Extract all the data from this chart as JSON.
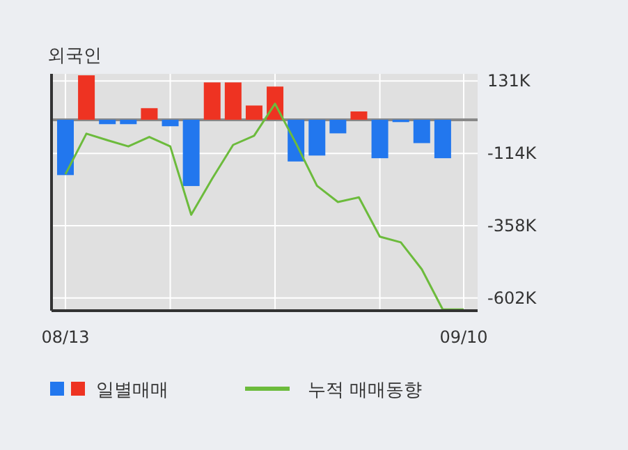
{
  "chart_data": {
    "type": "bar",
    "title": "외국인",
    "categories": [
      "08/13",
      null,
      null,
      null,
      null,
      null,
      null,
      null,
      null,
      null,
      null,
      null,
      null,
      null,
      null,
      null,
      null,
      null,
      null,
      "09/10"
    ],
    "series": [
      {
        "name": "일별매매",
        "values": [
          -187,
          150,
          -15,
          -15,
          39,
          -22,
          -224,
          126,
          126,
          48,
          112,
          -141,
          -121,
          -46,
          28,
          -130,
          -8,
          -79,
          -130,
          0
        ],
        "colors": [
          "#2277ee",
          "#ee3322",
          "#2277ee",
          "#2277ee",
          "#ee3322",
          "#2277ee",
          "#2277ee",
          "#ee3322",
          "#ee3322",
          "#ee3322",
          "#ee3322",
          "#2277ee",
          "#2277ee",
          "#2277ee",
          "#ee3322",
          "#2277ee",
          "#2277ee",
          "#2277ee",
          "#2277ee",
          "#2277ee"
        ]
      },
      {
        "name": "누적 매매동향",
        "type": "line",
        "color": "#6cbb3c",
        "values": [
          -184,
          -47,
          -69,
          -90,
          -58,
          -90,
          -321,
          -199,
          -85,
          -54,
          54,
          -80,
          -223,
          -278,
          -262,
          -395,
          -414,
          -505,
          -641,
          -641
        ]
      }
    ],
    "ylim": [
      -645,
      155
    ],
    "yticks": [
      {
        "value": 131,
        "label": "131K"
      },
      {
        "value": -114,
        "label": "-114K"
      },
      {
        "value": -358,
        "label": "-358K"
      },
      {
        "value": -602,
        "label": "-602K"
      }
    ],
    "ref_lines": [
      {
        "axis": "y",
        "value": 0,
        "color": "#888888"
      }
    ],
    "grid": true,
    "legend": "bottom"
  }
}
